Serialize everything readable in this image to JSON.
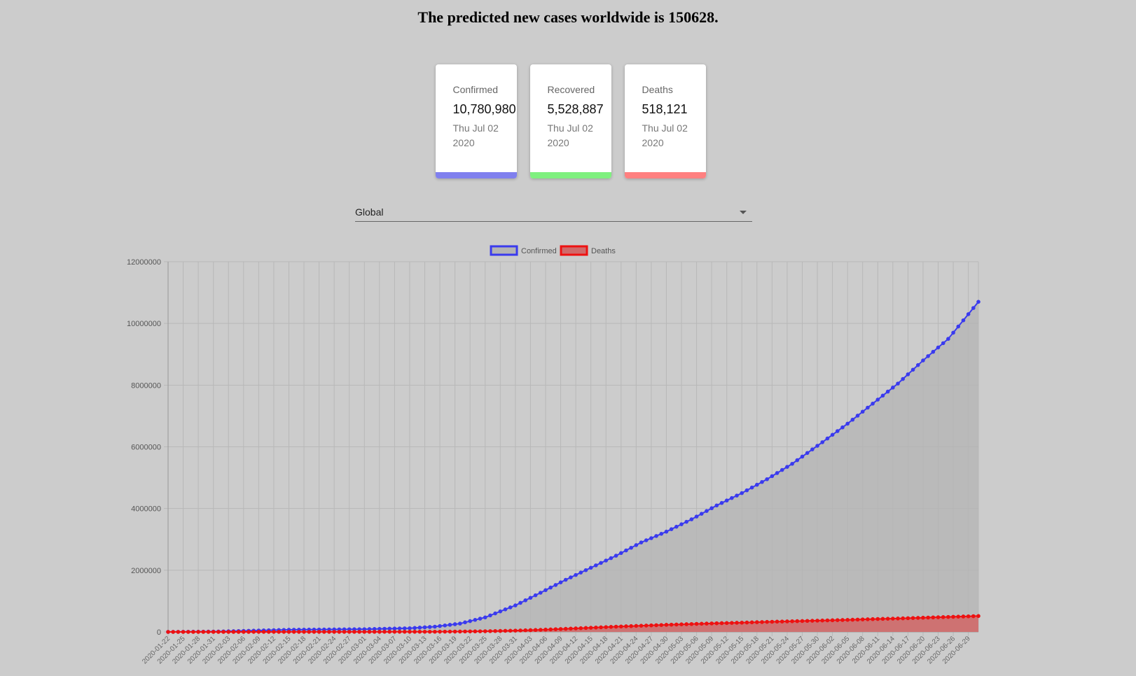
{
  "headline": "The predicted new cases worldwide is 150628.",
  "cards": [
    {
      "label": "Confirmed",
      "value": "10,780,980",
      "date": "Thu Jul 02 2020",
      "color": "#8080ee"
    },
    {
      "label": "Recovered",
      "value": "5,528,887",
      "date": "Thu Jul 02 2020",
      "color": "#7ff07f"
    },
    {
      "label": "Deaths",
      "value": "518,121",
      "date": "Thu Jul 02 2020",
      "color": "#ff8080"
    }
  ],
  "selector": {
    "value": "Global",
    "icon": "caret-down-icon"
  },
  "chart_data": {
    "type": "area",
    "title": "",
    "xlabel": "",
    "ylabel": "",
    "ylim": [
      0,
      12000000
    ],
    "yticks": [
      0,
      2000000,
      4000000,
      6000000,
      8000000,
      10000000,
      12000000
    ],
    "x_start": "2020-01-22",
    "x_end": "2020-07-01",
    "x_tick_every_days": 3,
    "grid": true,
    "legend": "top-center",
    "series": [
      {
        "name": "Confirmed",
        "line_color": "#3a3aee",
        "fill_color": "#b4b4b4",
        "points": [
          [
            "2020-01-22",
            555
          ],
          [
            "2020-02-01",
            12000
          ],
          [
            "2020-02-15",
            69000
          ],
          [
            "2020-03-01",
            88000
          ],
          [
            "2020-03-10",
            119000
          ],
          [
            "2020-03-15",
            170000
          ],
          [
            "2020-03-20",
            270000
          ],
          [
            "2020-03-25",
            470000
          ],
          [
            "2020-03-31",
            860000
          ],
          [
            "2020-04-05",
            1270000
          ],
          [
            "2020-04-10",
            1690000
          ],
          [
            "2020-04-15",
            2080000
          ],
          [
            "2020-04-20",
            2470000
          ],
          [
            "2020-04-25",
            2900000
          ],
          [
            "2020-04-30",
            3250000
          ],
          [
            "2020-05-05",
            3650000
          ],
          [
            "2020-05-10",
            4100000
          ],
          [
            "2020-05-15",
            4500000
          ],
          [
            "2020-05-20",
            4950000
          ],
          [
            "2020-05-25",
            5450000
          ],
          [
            "2020-05-31",
            6150000
          ],
          [
            "2020-06-05",
            6750000
          ],
          [
            "2020-06-10",
            7400000
          ],
          [
            "2020-06-15",
            8050000
          ],
          [
            "2020-06-20",
            8800000
          ],
          [
            "2020-06-25",
            9500000
          ],
          [
            "2020-07-01",
            10700000
          ]
        ]
      },
      {
        "name": "Deaths",
        "line_color": "#ee1111",
        "fill_color": "#d06a6a",
        "points": [
          [
            "2020-01-22",
            17
          ],
          [
            "2020-02-15",
            1500
          ],
          [
            "2020-03-01",
            3000
          ],
          [
            "2020-03-15",
            6000
          ],
          [
            "2020-03-20",
            12000
          ],
          [
            "2020-03-25",
            22000
          ],
          [
            "2020-03-31",
            42000
          ],
          [
            "2020-04-05",
            68000
          ],
          [
            "2020-04-10",
            100000
          ],
          [
            "2020-04-15",
            135000
          ],
          [
            "2020-04-20",
            170000
          ],
          [
            "2020-04-25",
            200000
          ],
          [
            "2020-04-30",
            230000
          ],
          [
            "2020-05-05",
            255000
          ],
          [
            "2020-05-10",
            280000
          ],
          [
            "2020-05-15",
            300000
          ],
          [
            "2020-05-20",
            325000
          ],
          [
            "2020-05-25",
            345000
          ],
          [
            "2020-05-31",
            370000
          ],
          [
            "2020-06-05",
            390000
          ],
          [
            "2020-06-10",
            415000
          ],
          [
            "2020-06-15",
            435000
          ],
          [
            "2020-06-20",
            460000
          ],
          [
            "2020-06-25",
            485000
          ],
          [
            "2020-07-01",
            515000
          ]
        ]
      }
    ]
  }
}
